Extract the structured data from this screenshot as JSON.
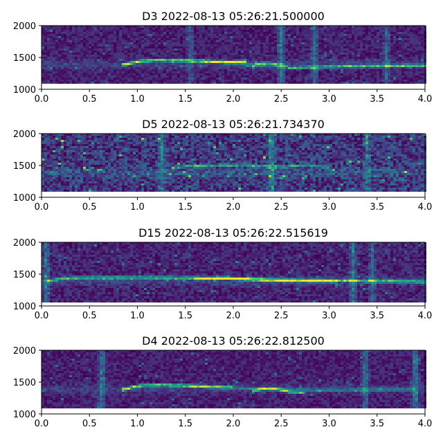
{
  "chart_data": [
    {
      "type": "heatmap",
      "title": "D3 2022-08-13 05:26:21.500000",
      "xlim": [
        0.0,
        4.0
      ],
      "ylim": [
        1000,
        2000
      ],
      "data_ylim": [
        1090,
        2000
      ],
      "xticks": [
        "0.0",
        "0.5",
        "1.0",
        "1.5",
        "2.0",
        "2.5",
        "3.0",
        "3.5",
        "4.0"
      ],
      "yticks": [
        "1000",
        "1500",
        "2000"
      ],
      "colormap": "viridis",
      "noise_level": 0.18,
      "series": [
        {
          "points": [
            [
              0.85,
              1380
            ],
            [
              0.95,
              1415
            ],
            [
              1.05,
              1445
            ],
            [
              1.2,
              1455
            ],
            [
              1.5,
              1450
            ],
            [
              1.8,
              1430
            ],
            [
              2.0,
              1430
            ],
            [
              2.15,
              1440
            ]
          ],
          "intensity": 0.95
        },
        {
          "points": [
            [
              2.2,
              1340
            ],
            [
              2.25,
              1400
            ],
            [
              2.35,
              1410
            ],
            [
              2.5,
              1380
            ],
            [
              2.6,
              1335
            ],
            [
              2.75,
              1340
            ],
            [
              3.0,
              1355
            ],
            [
              3.5,
              1365
            ],
            [
              4.0,
              1370
            ]
          ],
          "intensity": 0.7
        },
        {
          "points": [
            [
              1.9,
              1420
            ],
            [
              2.5,
              1350
            ]
          ],
          "intensity": 0.35
        }
      ],
      "streaks": [
        [
          2.5,
          0.4
        ],
        [
          2.85,
          0.35
        ],
        [
          1.55,
          0.25
        ],
        [
          3.6,
          0.3
        ]
      ]
    },
    {
      "type": "heatmap",
      "title": "D5 2022-08-13 05:26:21.734370",
      "xlim": [
        0.0,
        4.0
      ],
      "ylim": [
        1000,
        2000
      ],
      "data_ylim": [
        1090,
        2000
      ],
      "xticks": [
        "0.0",
        "0.5",
        "1.0",
        "1.5",
        "2.0",
        "2.5",
        "3.0",
        "3.5",
        "4.0"
      ],
      "yticks": [
        "1000",
        "1500",
        "2000"
      ],
      "colormap": "viridis",
      "noise_level": 0.34,
      "series": [
        {
          "points": [
            [
              1.35,
              1460
            ],
            [
              1.5,
              1490
            ],
            [
              1.8,
              1500
            ],
            [
              2.1,
              1505
            ],
            [
              2.4,
              1480
            ],
            [
              2.8,
              1500
            ],
            [
              3.0,
              1470
            ]
          ],
          "intensity": 0.55
        }
      ],
      "streaks": [
        [
          1.25,
          0.3
        ],
        [
          2.4,
          0.4
        ],
        [
          3.4,
          0.3
        ]
      ]
    },
    {
      "type": "heatmap",
      "title": "D15 2022-08-13 05:26:22.515619",
      "xlim": [
        0.0,
        4.0
      ],
      "ylim": [
        1000,
        2000
      ],
      "data_ylim": [
        1060,
        2000
      ],
      "xticks": [
        "0.0",
        "0.5",
        "1.0",
        "1.5",
        "2.0",
        "2.5",
        "3.0",
        "3.5",
        "4.0"
      ],
      "yticks": [
        "1000",
        "1500",
        "2000"
      ],
      "colormap": "viridis",
      "noise_level": 0.2,
      "series": [
        {
          "points": [
            [
              0.05,
              1380
            ],
            [
              0.2,
              1430
            ],
            [
              0.5,
              1445
            ],
            [
              1.0,
              1445
            ],
            [
              1.5,
              1440
            ],
            [
              2.0,
              1430
            ],
            [
              2.5,
              1410
            ],
            [
              3.0,
              1400
            ],
            [
              3.5,
              1390
            ],
            [
              4.0,
              1380
            ]
          ],
          "intensity": 0.75
        },
        {
          "points": [
            [
              1.6,
              1420
            ],
            [
              1.9,
              1440
            ],
            [
              2.3,
              1400
            ],
            [
              2.7,
              1390
            ],
            [
              3.1,
              1385
            ]
          ],
          "intensity": 0.55
        }
      ],
      "streaks": [
        [
          3.25,
          0.4
        ],
        [
          3.45,
          0.3
        ],
        [
          0.05,
          0.35
        ]
      ]
    },
    {
      "type": "heatmap",
      "title": "D4 2022-08-13 05:26:22.812500",
      "xlim": [
        0.0,
        4.0
      ],
      "ylim": [
        1000,
        2000
      ],
      "data_ylim": [
        1090,
        2000
      ],
      "xticks": [
        "0.0",
        "0.5",
        "1.0",
        "1.5",
        "2.0",
        "2.5",
        "3.0",
        "3.5",
        "4.0"
      ],
      "yticks": [
        "1000",
        "1500",
        "2000"
      ],
      "colormap": "viridis",
      "noise_level": 0.17,
      "series": [
        {
          "points": [
            [
              0.85,
              1380
            ],
            [
              0.95,
              1420
            ],
            [
              1.05,
              1445
            ],
            [
              1.3,
              1455
            ],
            [
              1.6,
              1435
            ],
            [
              1.9,
              1420
            ],
            [
              2.0,
              1415
            ]
          ],
          "intensity": 0.95
        },
        {
          "points": [
            [
              2.2,
              1350
            ],
            [
              2.3,
              1395
            ],
            [
              2.45,
              1395
            ],
            [
              2.6,
              1340
            ],
            [
              2.75,
              1330
            ]
          ],
          "intensity": 0.7
        },
        {
          "points": [
            [
              2.0,
              1410
            ],
            [
              2.5,
              1380
            ],
            [
              3.0,
              1370
            ],
            [
              3.5,
              1380
            ],
            [
              3.9,
              1390
            ]
          ],
          "intensity": 0.35
        }
      ],
      "streaks": [
        [
          0.63,
          0.4
        ],
        [
          3.38,
          0.4
        ],
        [
          3.9,
          0.45
        ]
      ]
    }
  ]
}
